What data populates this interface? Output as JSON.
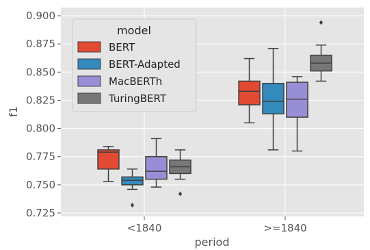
{
  "chart_data": {
    "type": "box",
    "xlabel": "period",
    "ylabel": "f1",
    "ylim": [
      0.725,
      0.9
    ],
    "yticks": [
      0.725,
      0.75,
      0.775,
      0.8,
      0.825,
      0.85,
      0.875,
      0.9
    ],
    "ytick_labels": [
      "0.725",
      "0.750",
      "0.775",
      "0.800",
      "0.825",
      "0.850",
      "0.875",
      "0.900"
    ],
    "categories": [
      "<1840",
      ">=1840"
    ],
    "grid": true,
    "legend": {
      "title": "model",
      "position": "top-left"
    },
    "series": [
      {
        "name": "BERT",
        "color": "#e24a33",
        "boxes": [
          {
            "whisker_low": 0.753,
            "q1": 0.764,
            "median": 0.779,
            "q3": 0.781,
            "whisker_high": 0.784,
            "outliers": []
          },
          {
            "whisker_low": 0.805,
            "q1": 0.821,
            "median": 0.833,
            "q3": 0.842,
            "whisker_high": 0.862,
            "outliers": []
          }
        ]
      },
      {
        "name": "BERT-Adapted",
        "color": "#348abd",
        "boxes": [
          {
            "whisker_low": 0.746,
            "q1": 0.75,
            "median": 0.754,
            "q3": 0.757,
            "whisker_high": 0.764,
            "outliers": [
              0.732
            ]
          },
          {
            "whisker_low": 0.781,
            "q1": 0.813,
            "median": 0.824,
            "q3": 0.84,
            "whisker_high": 0.871,
            "outliers": []
          }
        ]
      },
      {
        "name": "MacBERTh",
        "color": "#988ed5",
        "boxes": [
          {
            "whisker_low": 0.748,
            "q1": 0.755,
            "median": 0.762,
            "q3": 0.775,
            "whisker_high": 0.791,
            "outliers": []
          },
          {
            "whisker_low": 0.78,
            "q1": 0.81,
            "median": 0.826,
            "q3": 0.841,
            "whisker_high": 0.846,
            "outliers": []
          }
        ]
      },
      {
        "name": "TuringBERT",
        "color": "#777777",
        "boxes": [
          {
            "whisker_low": 0.755,
            "q1": 0.76,
            "median": 0.766,
            "q3": 0.772,
            "whisker_high": 0.781,
            "outliers": [
              0.742
            ]
          },
          {
            "whisker_low": 0.842,
            "q1": 0.851,
            "median": 0.858,
            "q3": 0.865,
            "whisker_high": 0.874,
            "outliers": [
              0.894
            ]
          }
        ]
      }
    ]
  }
}
